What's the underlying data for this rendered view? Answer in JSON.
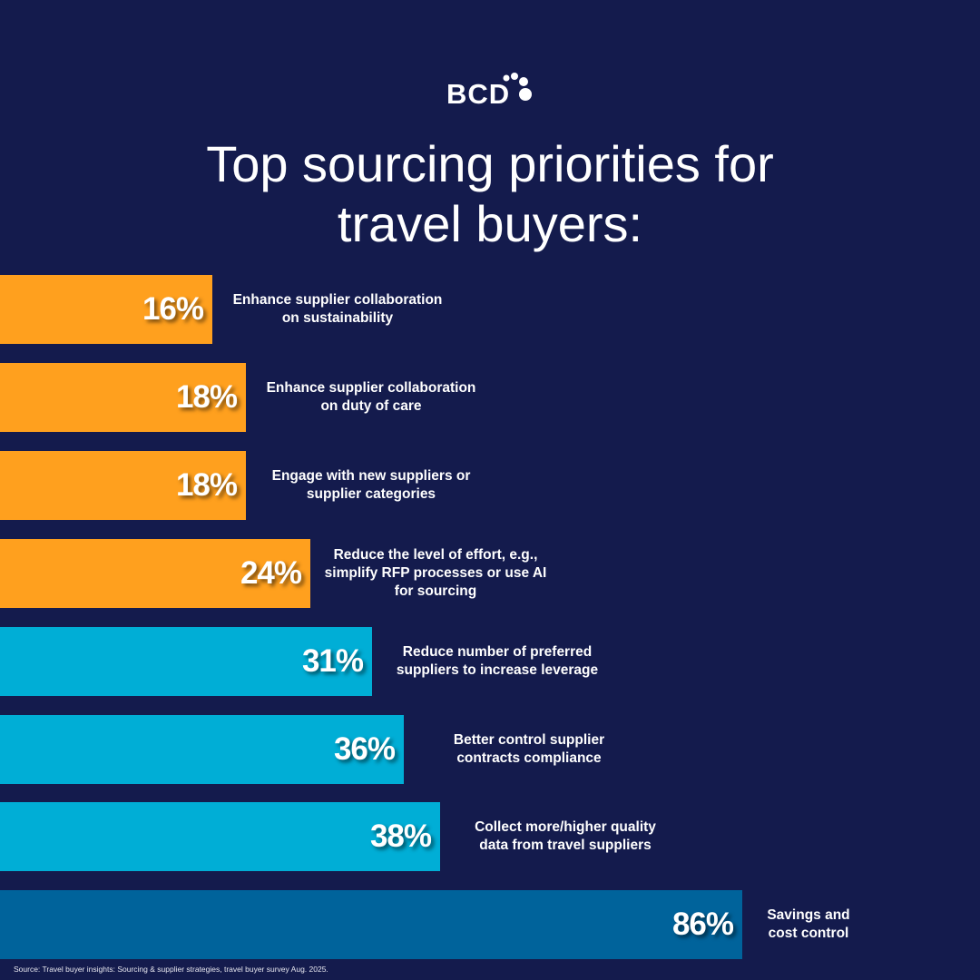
{
  "brand": {
    "logo_text": "BCD"
  },
  "chart_data": {
    "type": "bar",
    "orientation": "horizontal",
    "title": "Top sourcing priorities for travel buyers:",
    "unit": "%",
    "categories": [
      "Enhance supplier collaboration\non sustainability",
      "Enhance supplier collaboration\non duty of care",
      "Engage with new suppliers or\nsupplier categories",
      "Reduce the level of effort, e.g.,\nsimplify RFP processes or use AI\nfor sourcing",
      "Reduce number of preferred\nsuppliers to increase leverage",
      "Better control supplier\ncontracts compliance",
      "Collect more/higher quality\ndata from travel suppliers",
      "Savings and\ncost control"
    ],
    "values": [
      16,
      18,
      18,
      24,
      31,
      36,
      38,
      86
    ],
    "value_labels": [
      "16%",
      "18%",
      "18%",
      "24%",
      "31%",
      "36%",
      "38%",
      "86%"
    ],
    "colors": [
      "#ffa01e",
      "#ffa01e",
      "#ffa01e",
      "#ffa01e",
      "#00aed6",
      "#00aed6",
      "#00aed6",
      "#00639b"
    ],
    "grid": false
  },
  "colors": {
    "background": "#141b4d"
  },
  "source": "Source: Travel buyer insights: Sourcing & supplier strategies, travel buyer survey Aug. 2025."
}
